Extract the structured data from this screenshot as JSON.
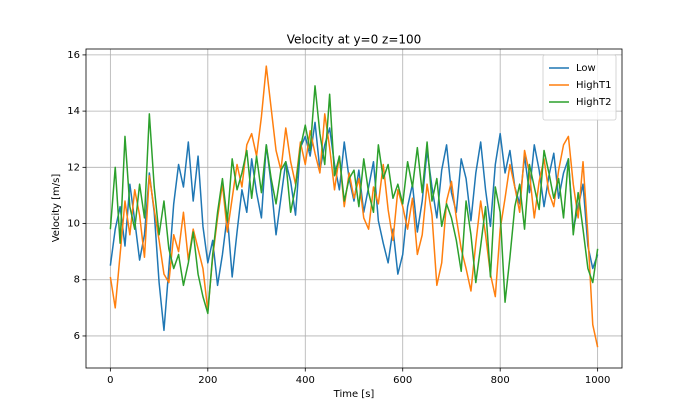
{
  "chart_data": {
    "type": "line",
    "title": "Velocity at y=0 z=100",
    "x_label": "Time [s]",
    "y_label": "Velocity [m/s]",
    "x": [
      0,
      10,
      20,
      30,
      40,
      50,
      60,
      70,
      80,
      90,
      100,
      110,
      120,
      130,
      140,
      150,
      160,
      170,
      180,
      190,
      200,
      210,
      220,
      230,
      240,
      250,
      260,
      270,
      280,
      290,
      300,
      310,
      320,
      330,
      340,
      350,
      360,
      370,
      380,
      390,
      400,
      410,
      420,
      430,
      440,
      450,
      460,
      470,
      480,
      490,
      500,
      510,
      520,
      530,
      540,
      550,
      560,
      570,
      580,
      590,
      600,
      610,
      620,
      630,
      640,
      650,
      660,
      670,
      680,
      690,
      700,
      710,
      720,
      730,
      740,
      750,
      760,
      770,
      780,
      790,
      800,
      810,
      820,
      830,
      840,
      850,
      860,
      870,
      880,
      890,
      900,
      910,
      920,
      930,
      940,
      950,
      960,
      970,
      980,
      990,
      1000
    ],
    "series": [
      {
        "name": "Low",
        "color": "#1f77b4",
        "values": [
          8.5,
          9.8,
          10.6,
          9.2,
          11.4,
          10.1,
          8.7,
          9.6,
          11.8,
          10.4,
          7.9,
          6.2,
          8.4,
          10.7,
          12.1,
          11.3,
          12.9,
          10.8,
          12.4,
          9.9,
          8.6,
          9.4,
          7.8,
          8.9,
          10.3,
          8.1,
          9.7,
          11.2,
          10.4,
          12.3,
          11.1,
          10.2,
          12.8,
          11.4,
          9.6,
          10.9,
          12.2,
          11.5,
          10.3,
          12.7,
          13.1,
          12.4,
          13.6,
          11.9,
          12.8,
          13.4,
          12.1,
          11.2,
          12.9,
          11.6,
          10.8,
          11.9,
          10.4,
          11.3,
          12.2,
          10.1,
          9.3,
          8.6,
          9.8,
          8.2,
          8.9,
          10.6,
          11.4,
          9.7,
          10.8,
          12.6,
          11.3,
          10.2,
          11.9,
          12.8,
          11.1,
          10.4,
          12.3,
          11.6,
          10.1,
          11.8,
          12.9,
          11.2,
          9.9,
          12.1,
          13.2,
          11.8,
          12.6,
          11.3,
          10.7,
          12.4,
          11.1,
          12.8,
          11.9,
          10.6,
          11.7,
          12.5,
          10.9,
          11.8,
          12.3,
          9.8,
          10.6,
          11.4,
          9.2,
          8.4,
          8.9
        ]
      },
      {
        "name": "HighT1",
        "color": "#ff7f0e",
        "values": [
          8.1,
          7.0,
          8.9,
          10.8,
          9.6,
          11.2,
          10.3,
          8.8,
          11.7,
          10.5,
          9.4,
          8.2,
          7.9,
          9.6,
          9.0,
          10.4,
          8.7,
          9.8,
          9.1,
          8.4,
          6.9,
          8.8,
          10.2,
          11.4,
          9.7,
          10.9,
          12.1,
          11.3,
          12.8,
          13.2,
          12.4,
          13.8,
          15.6,
          14.1,
          12.6,
          11.9,
          13.4,
          12.2,
          11.4,
          12.9,
          12.1,
          13.3,
          12.5,
          11.8,
          13.9,
          12.7,
          11.2,
          12.4,
          10.6,
          11.8,
          10.9,
          11.6,
          10.2,
          9.8,
          11.3,
          10.7,
          12.1,
          10.5,
          9.4,
          11.2,
          10.6,
          9.8,
          10.9,
          8.9,
          9.6,
          11.4,
          10.3,
          7.8,
          8.6,
          10.8,
          11.5,
          10.2,
          9.1,
          8.4,
          7.6,
          9.3,
          10.8,
          9.6,
          8.2,
          7.4,
          9.8,
          10.9,
          12.1,
          11.3,
          10.4,
          12.6,
          11.8,
          10.2,
          11.5,
          12.3,
          11.1,
          10.6,
          11.9,
          12.8,
          13.1,
          11.4,
          10.2,
          12.2,
          9.6,
          6.4,
          5.6
        ]
      },
      {
        "name": "HighT2",
        "color": "#2ca02c",
        "values": [
          9.8,
          12.0,
          9.3,
          13.1,
          10.6,
          9.8,
          11.4,
          10.2,
          13.9,
          11.3,
          9.6,
          10.8,
          9.1,
          8.4,
          8.9,
          7.8,
          8.6,
          9.7,
          8.2,
          7.4,
          6.8,
          8.9,
          10.4,
          11.6,
          10.1,
          12.3,
          11.2,
          11.8,
          12.6,
          10.9,
          12.4,
          11.1,
          12.8,
          11.6,
          10.7,
          11.9,
          12.2,
          10.4,
          11.3,
          12.7,
          13.5,
          12.6,
          14.9,
          13.2,
          12.1,
          14.6,
          11.7,
          12.4,
          10.8,
          11.6,
          11.9,
          10.6,
          12.3,
          11.1,
          10.4,
          12.8,
          11.6,
          12.1,
          10.9,
          11.4,
          10.7,
          12.2,
          11.3,
          12.7,
          11.1,
          12.9,
          10.8,
          11.6,
          9.9,
          10.7,
          10.2,
          9.4,
          8.3,
          10.8,
          9.6,
          7.9,
          9.2,
          10.6,
          8.1,
          11.3,
          10.4,
          7.2,
          8.8,
          10.6,
          11.4,
          9.8,
          12.1,
          11.3,
          10.5,
          12.6,
          11.8,
          10.9,
          11.6,
          10.2,
          12.3,
          9.6,
          11.1,
          9.8,
          8.4,
          7.9,
          9.1
        ]
      }
    ],
    "xlim": [
      -50,
      1050
    ],
    "xticks": [
      0,
      200,
      400,
      600,
      800,
      1000
    ],
    "ylim": [
      4.86,
      16.21
    ],
    "yticks": [
      6,
      8,
      10,
      12,
      14,
      16
    ],
    "grid": true,
    "legend": "upper right"
  }
}
